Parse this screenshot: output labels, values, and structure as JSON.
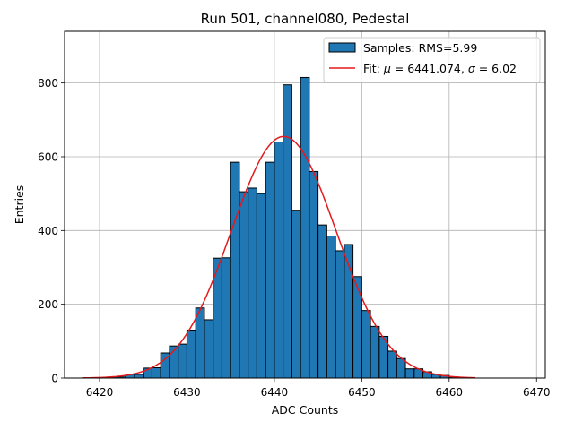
{
  "chart_data": {
    "type": "bar",
    "title": "Run 501, channel080, Pedestal",
    "xlabel": "ADC Counts",
    "ylabel": "Entries",
    "xlim": [
      6416,
      6471
    ],
    "ylim": [
      0,
      940
    ],
    "xticks": [
      6420,
      6430,
      6440,
      6450,
      6460,
      6470
    ],
    "yticks": [
      0,
      200,
      400,
      600,
      800
    ],
    "grid": true,
    "legend_position": "upper right",
    "bar_color": "#1f77b4",
    "fit_color": "#e31a1c",
    "histogram": {
      "name": "Samples: RMS=5.99",
      "bin_width": 1,
      "bin_lefts": [
        6421,
        6422,
        6423,
        6424,
        6425,
        6426,
        6427,
        6428,
        6429,
        6430,
        6431,
        6432,
        6433,
        6434,
        6435,
        6436,
        6437,
        6438,
        6439,
        6440,
        6441,
        6442,
        6443,
        6444,
        6445,
        6446,
        6447,
        6448,
        6449,
        6450,
        6451,
        6452,
        6453,
        6454,
        6455,
        6456,
        6457,
        6458,
        6459,
        6460
      ],
      "values": [
        3,
        3,
        10,
        10,
        27,
        28,
        68,
        87,
        92,
        130,
        190,
        158,
        325,
        326,
        585,
        505,
        515,
        500,
        585,
        640,
        795,
        455,
        815,
        560,
        415,
        385,
        345,
        362,
        275,
        183,
        140,
        113,
        73,
        53,
        25,
        25,
        17,
        10,
        7,
        3
      ]
    },
    "fit": {
      "name": "Fit: μ = 6441.074, σ = 6.02",
      "legend_prefix": "Fit: ",
      "mu_symbol": "μ",
      "mu_text": " = 6441.074, ",
      "sigma_symbol": "σ",
      "sigma_text": " = 6.02",
      "mu": 6441.074,
      "sigma": 6.02,
      "amplitude": 655,
      "x_range": [
        6418,
        6463
      ]
    }
  }
}
